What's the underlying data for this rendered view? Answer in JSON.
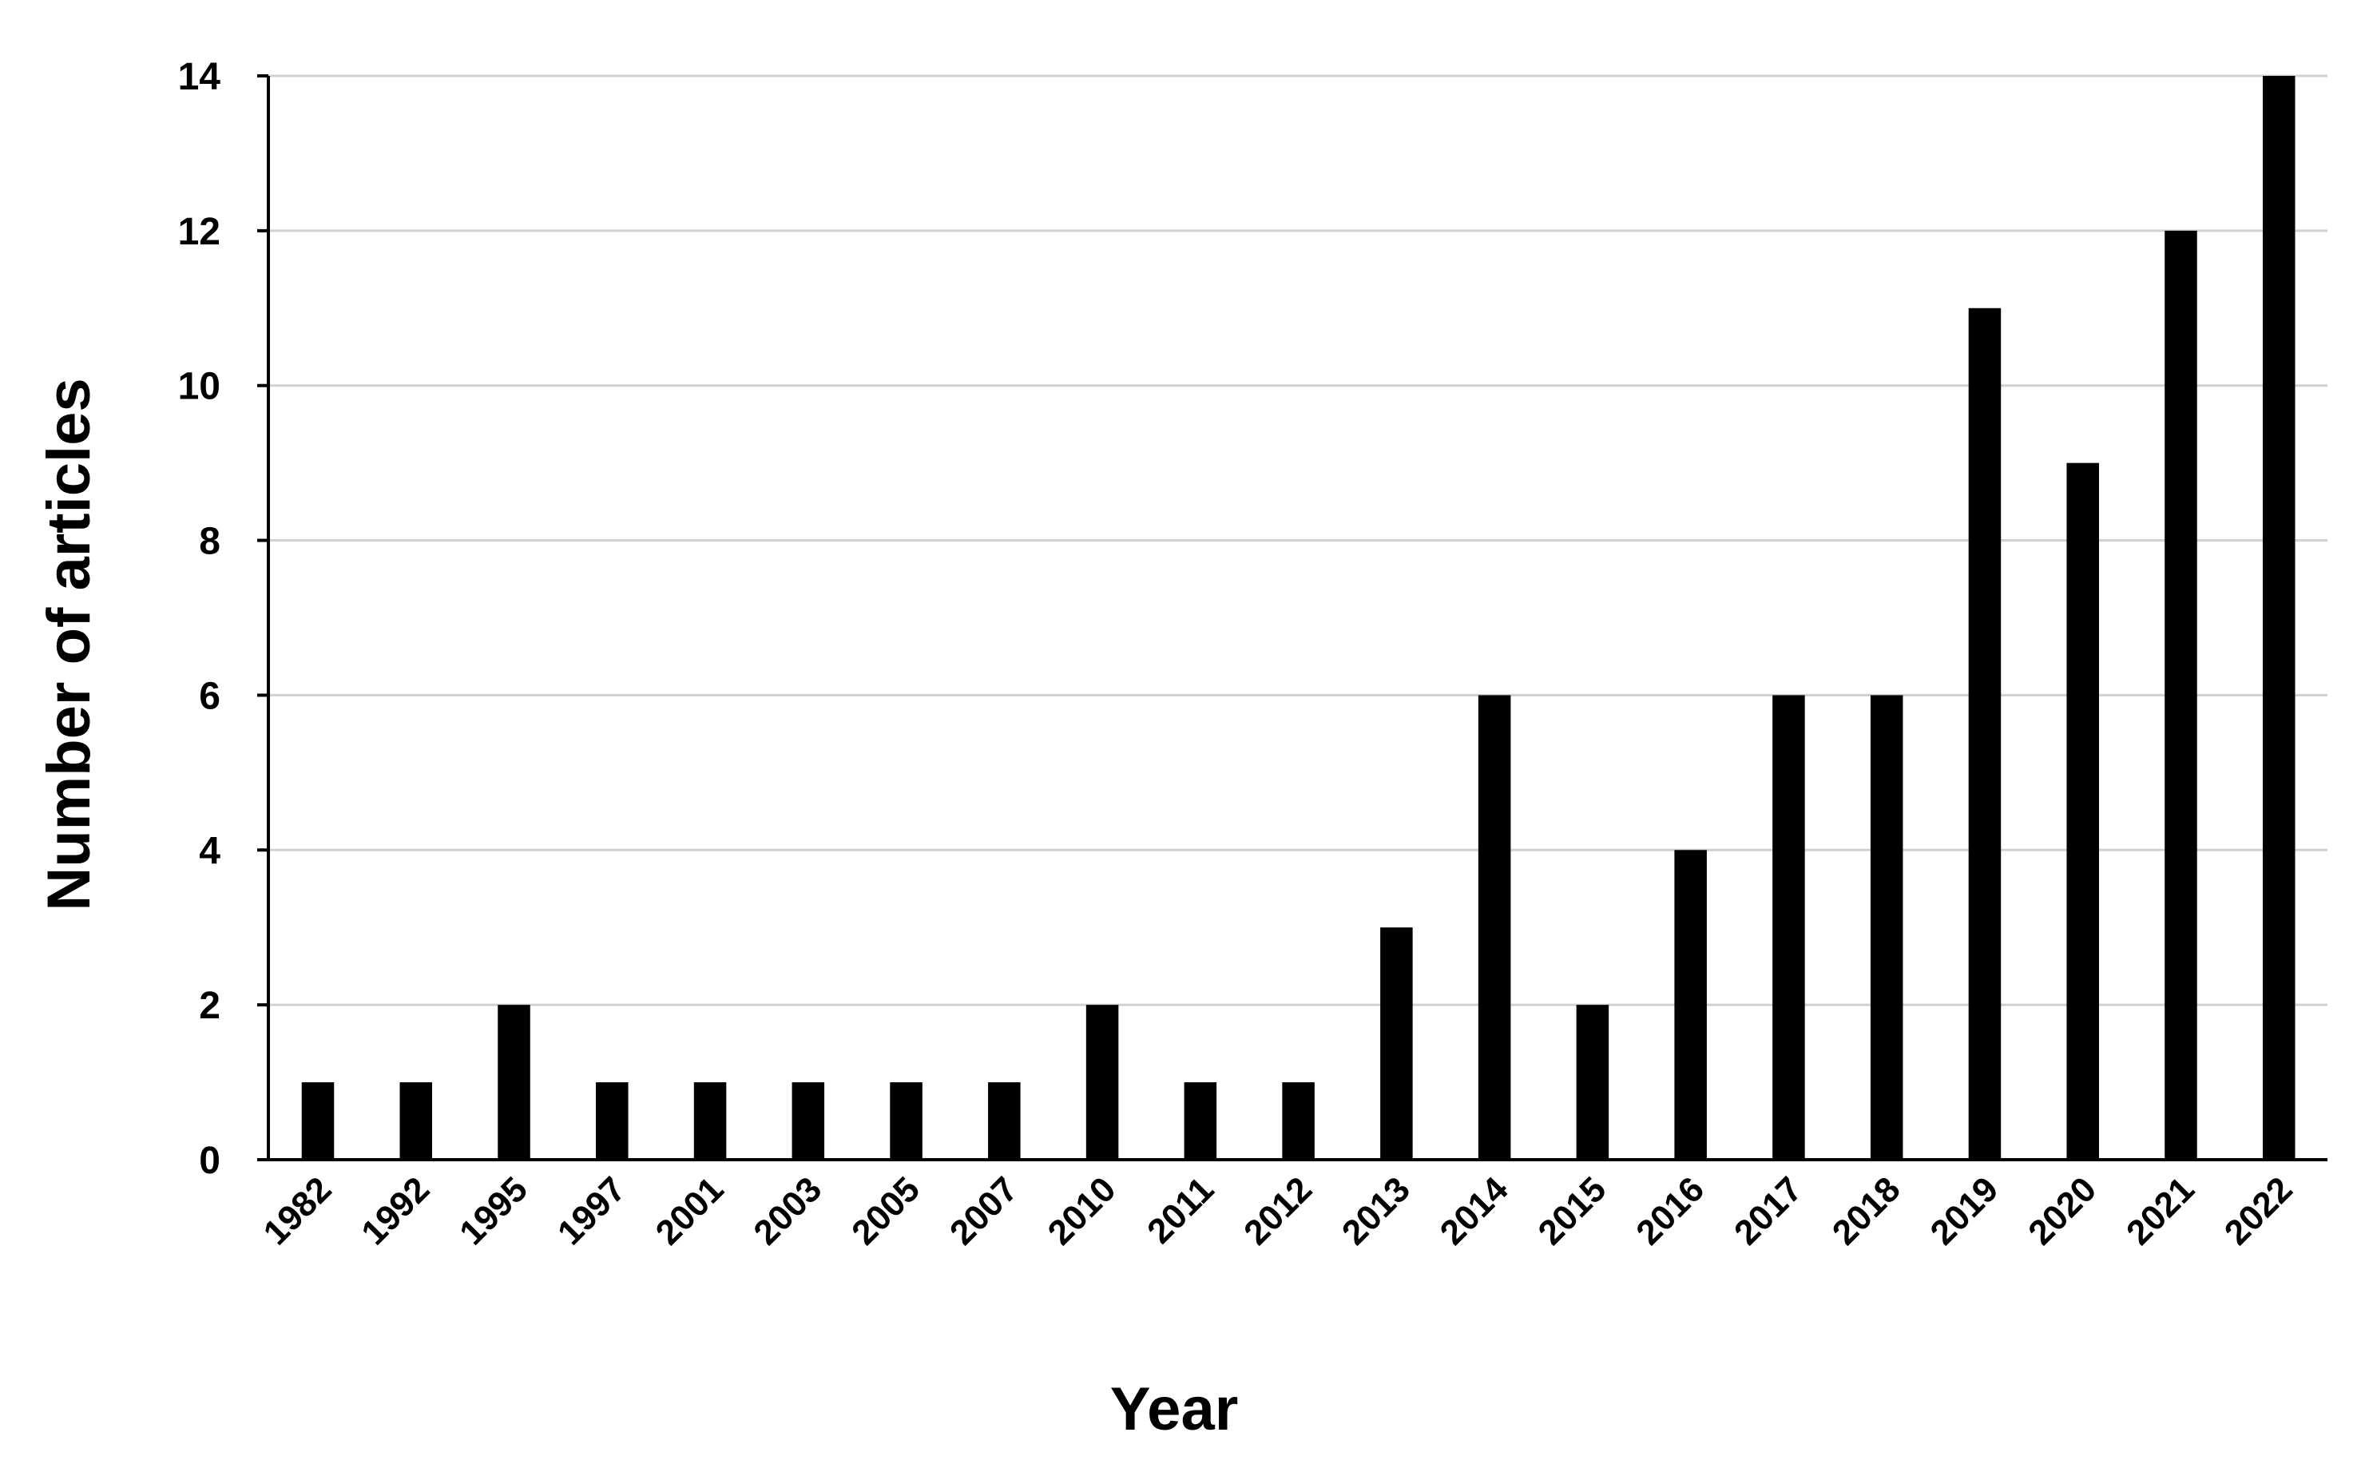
{
  "chart_data": {
    "type": "bar",
    "x_label": "Year",
    "y_label": "Number of articles",
    "categories": [
      "1982",
      "1992",
      "1995",
      "1997",
      "2001",
      "2003",
      "2005",
      "2007",
      "2010",
      "2011",
      "2012",
      "2013",
      "2014",
      "2015",
      "2016",
      "2017",
      "2018",
      "2019",
      "2020",
      "2021",
      "2022"
    ],
    "values": [
      1,
      1,
      2,
      1,
      1,
      1,
      1,
      1,
      2,
      1,
      1,
      3,
      6,
      2,
      4,
      6,
      6,
      11,
      9,
      12,
      14
    ],
    "color": "#000000",
    "ylim": [
      0,
      14
    ],
    "yticks": [
      0,
      2,
      4,
      6,
      8,
      10,
      12,
      14
    ],
    "grid": true
  }
}
